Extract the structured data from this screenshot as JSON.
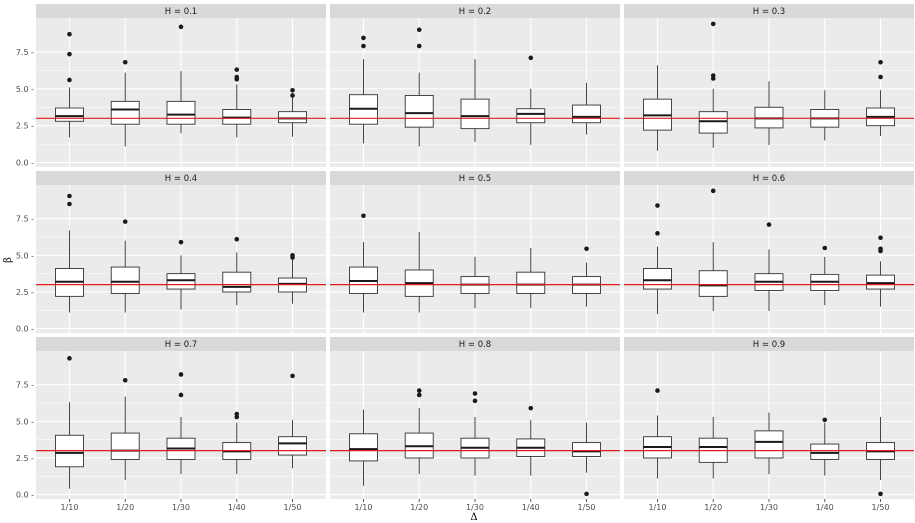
{
  "chart_data": {
    "type": "boxplot",
    "layout": "facet_wrap 3x3",
    "xlabel": "Δ",
    "ylabel": "β",
    "categories": [
      "1/10",
      "1/20",
      "1/30",
      "1/40",
      "1/50"
    ],
    "y_ticks": [
      0.0,
      2.5,
      5.0,
      7.5
    ],
    "y_tick_labels": [
      "0.0 -",
      "2.5 -",
      "5.0 -",
      "7.5 -"
    ],
    "ylim": [
      -0.3,
      9.8
    ],
    "reference_line": {
      "y": 3.0,
      "color": "#e31a1c"
    },
    "colors": {
      "panel_bg": "#ebebeb",
      "strip_bg": "#d9d9d9",
      "grid": "#ffffff",
      "box_fill": "#ffffff",
      "box_line": "#333333",
      "ref_line": "#e31a1c"
    },
    "panels": [
      {
        "title": "H = 0.1",
        "boxes": [
          {
            "q1": 2.8,
            "median": 3.15,
            "q3": 3.7,
            "wlo": 1.7,
            "whi": 5.1,
            "outliers": [
              5.6,
              7.35,
              8.7
            ]
          },
          {
            "q1": 2.6,
            "median": 3.6,
            "q3": 4.15,
            "wlo": 1.1,
            "whi": 6.1,
            "outliers": [
              6.8
            ]
          },
          {
            "q1": 2.6,
            "median": 3.25,
            "q3": 4.15,
            "wlo": 2.0,
            "whi": 6.2,
            "outliers": [
              9.2
            ]
          },
          {
            "q1": 2.6,
            "median": 3.05,
            "q3": 3.6,
            "wlo": 1.7,
            "whi": 5.3,
            "outliers": [
              5.65,
              5.8,
              6.3
            ]
          },
          {
            "q1": 2.7,
            "median": 3.0,
            "q3": 3.45,
            "wlo": 1.75,
            "whi": 4.4,
            "outliers": [
              4.55,
              4.9
            ]
          }
        ]
      },
      {
        "title": "H = 0.2",
        "boxes": [
          {
            "q1": 2.6,
            "median": 3.65,
            "q3": 4.6,
            "wlo": 1.3,
            "whi": 7.0,
            "outliers": [
              7.9,
              8.45
            ]
          },
          {
            "q1": 2.4,
            "median": 3.35,
            "q3": 4.55,
            "wlo": 1.1,
            "whi": 6.1,
            "outliers": [
              7.9,
              9.0
            ]
          },
          {
            "q1": 2.3,
            "median": 3.15,
            "q3": 4.3,
            "wlo": 1.4,
            "whi": 7.0,
            "outliers": []
          },
          {
            "q1": 2.7,
            "median": 3.3,
            "q3": 3.65,
            "wlo": 1.2,
            "whi": 5.0,
            "outliers": [
              7.1
            ]
          },
          {
            "q1": 2.7,
            "median": 3.1,
            "q3": 3.9,
            "wlo": 1.9,
            "whi": 5.4,
            "outliers": []
          }
        ]
      },
      {
        "title": "H = 0.3",
        "boxes": [
          {
            "q1": 2.2,
            "median": 3.2,
            "q3": 4.3,
            "wlo": 0.8,
            "whi": 6.6,
            "outliers": []
          },
          {
            "q1": 2.0,
            "median": 2.8,
            "q3": 3.45,
            "wlo": 1.0,
            "whi": 5.0,
            "outliers": [
              5.7,
              5.9,
              9.4
            ]
          },
          {
            "q1": 2.35,
            "median": 3.0,
            "q3": 3.75,
            "wlo": 1.2,
            "whi": 5.5,
            "outliers": []
          },
          {
            "q1": 2.4,
            "median": 3.0,
            "q3": 3.6,
            "wlo": 1.5,
            "whi": 4.9,
            "outliers": []
          },
          {
            "q1": 2.5,
            "median": 3.1,
            "q3": 3.7,
            "wlo": 1.8,
            "whi": 4.9,
            "outliers": [
              5.8,
              6.8
            ]
          }
        ]
      },
      {
        "title": "H = 0.4",
        "boxes": [
          {
            "q1": 2.2,
            "median": 3.2,
            "q3": 4.1,
            "wlo": 1.1,
            "whi": 6.7,
            "outliers": [
              8.5,
              9.05
            ]
          },
          {
            "q1": 2.4,
            "median": 3.2,
            "q3": 4.2,
            "wlo": 1.1,
            "whi": 6.0,
            "outliers": [
              7.3
            ]
          },
          {
            "q1": 2.7,
            "median": 3.3,
            "q3": 3.75,
            "wlo": 1.3,
            "whi": 5.0,
            "outliers": [
              5.9
            ]
          },
          {
            "q1": 2.5,
            "median": 2.85,
            "q3": 3.85,
            "wlo": 1.6,
            "whi": 5.2,
            "outliers": [
              6.1
            ]
          },
          {
            "q1": 2.5,
            "median": 3.05,
            "q3": 3.45,
            "wlo": 1.7,
            "whi": 4.7,
            "outliers": [
              4.85,
              5.0
            ]
          }
        ]
      },
      {
        "title": "H = 0.5",
        "boxes": [
          {
            "q1": 2.4,
            "median": 3.25,
            "q3": 4.2,
            "wlo": 1.1,
            "whi": 5.9,
            "outliers": [
              7.7
            ]
          },
          {
            "q1": 2.2,
            "median": 3.1,
            "q3": 4.0,
            "wlo": 1.1,
            "whi": 6.6,
            "outliers": []
          },
          {
            "q1": 2.4,
            "median": 3.0,
            "q3": 3.55,
            "wlo": 1.4,
            "whi": 4.9,
            "outliers": []
          },
          {
            "q1": 2.4,
            "median": 3.0,
            "q3": 3.85,
            "wlo": 1.4,
            "whi": 5.5,
            "outliers": []
          },
          {
            "q1": 2.4,
            "median": 3.0,
            "q3": 3.55,
            "wlo": 1.5,
            "whi": 4.5,
            "outliers": [
              5.45
            ]
          }
        ]
      },
      {
        "title": "H = 0.6",
        "boxes": [
          {
            "q1": 2.7,
            "median": 3.3,
            "q3": 4.1,
            "wlo": 1.0,
            "whi": 5.6,
            "outliers": [
              6.5,
              8.4
            ]
          },
          {
            "q1": 2.2,
            "median": 2.95,
            "q3": 3.95,
            "wlo": 1.2,
            "whi": 5.9,
            "outliers": [
              9.4
            ]
          },
          {
            "q1": 2.6,
            "median": 3.2,
            "q3": 3.75,
            "wlo": 1.2,
            "whi": 5.4,
            "outliers": [
              7.1
            ]
          },
          {
            "q1": 2.6,
            "median": 3.2,
            "q3": 3.7,
            "wlo": 1.6,
            "whi": 4.9,
            "outliers": [
              5.5
            ]
          },
          {
            "q1": 2.7,
            "median": 3.1,
            "q3": 3.65,
            "wlo": 1.5,
            "whi": 4.6,
            "outliers": [
              5.3,
              5.45,
              6.2
            ]
          }
        ]
      },
      {
        "title": "H = 0.7",
        "boxes": [
          {
            "q1": 1.9,
            "median": 2.85,
            "q3": 4.05,
            "wlo": 0.4,
            "whi": 6.3,
            "outliers": [
              9.3
            ]
          },
          {
            "q1": 2.4,
            "median": 3.0,
            "q3": 4.2,
            "wlo": 1.0,
            "whi": 6.7,
            "outliers": [
              7.8
            ]
          },
          {
            "q1": 2.4,
            "median": 3.15,
            "q3": 3.85,
            "wlo": 1.4,
            "whi": 5.3,
            "outliers": [
              6.8,
              8.2
            ]
          },
          {
            "q1": 2.4,
            "median": 2.95,
            "q3": 3.55,
            "wlo": 1.4,
            "whi": 4.9,
            "outliers": [
              5.3,
              5.5
            ]
          },
          {
            "q1": 2.7,
            "median": 3.5,
            "q3": 3.95,
            "wlo": 1.8,
            "whi": 5.1,
            "outliers": [
              8.1
            ]
          }
        ]
      },
      {
        "title": "H = 0.8",
        "boxes": [
          {
            "q1": 2.3,
            "median": 3.1,
            "q3": 4.15,
            "wlo": 0.6,
            "whi": 5.8,
            "outliers": []
          },
          {
            "q1": 2.5,
            "median": 3.3,
            "q3": 4.2,
            "wlo": 1.4,
            "whi": 5.9,
            "outliers": [
              6.8,
              7.1
            ]
          },
          {
            "q1": 2.5,
            "median": 3.2,
            "q3": 3.85,
            "wlo": 1.3,
            "whi": 5.3,
            "outliers": [
              6.4,
              6.9
            ]
          },
          {
            "q1": 2.6,
            "median": 3.2,
            "q3": 3.8,
            "wlo": 1.3,
            "whi": 5.1,
            "outliers": [
              5.9
            ]
          },
          {
            "q1": 2.6,
            "median": 2.95,
            "q3": 3.55,
            "wlo": 1.5,
            "whi": 4.9,
            "outliers": [
              0.05
            ]
          }
        ]
      },
      {
        "title": "H = 0.9",
        "boxes": [
          {
            "q1": 2.5,
            "median": 3.25,
            "q3": 3.95,
            "wlo": 1.1,
            "whi": 5.4,
            "outliers": [
              7.1
            ]
          },
          {
            "q1": 2.2,
            "median": 3.25,
            "q3": 3.85,
            "wlo": 1.1,
            "whi": 5.3,
            "outliers": []
          },
          {
            "q1": 2.5,
            "median": 3.6,
            "q3": 4.35,
            "wlo": 1.4,
            "whi": 5.6,
            "outliers": []
          },
          {
            "q1": 2.4,
            "median": 2.85,
            "q3": 3.45,
            "wlo": 1.3,
            "whi": 4.9,
            "outliers": [
              5.1
            ]
          },
          {
            "q1": 2.4,
            "median": 2.95,
            "q3": 3.55,
            "wlo": 1.0,
            "whi": 5.3,
            "outliers": [
              0.05
            ]
          }
        ]
      }
    ]
  }
}
